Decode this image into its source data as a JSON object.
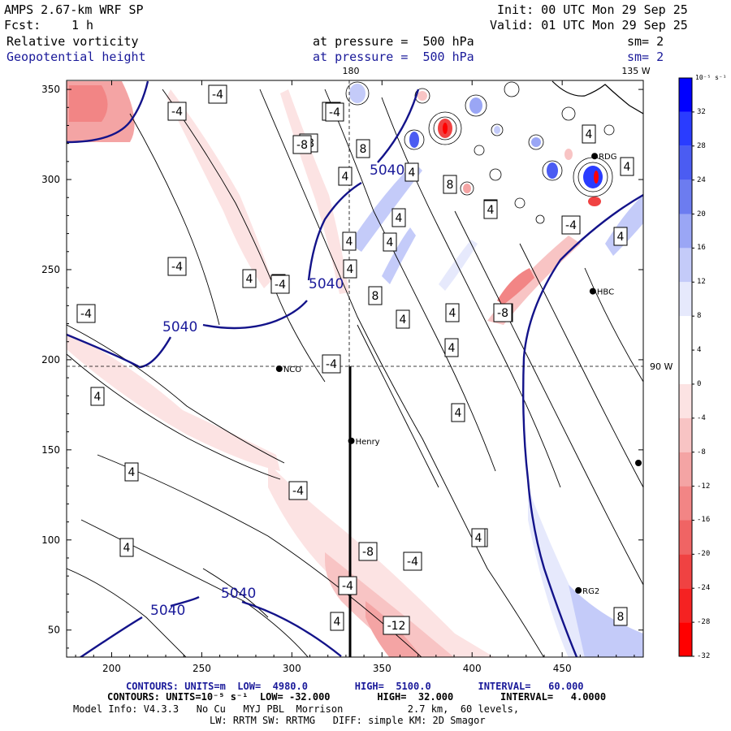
{
  "header": {
    "title": "AMPS 2.67-km WRF SP",
    "fcst_label": "Fcst:",
    "fcst_value": "1 h",
    "init": "Init: 00 UTC Mon 29 Sep 25",
    "valid": "Valid: 01 UTC Mon 29 Sep 25",
    "field1_name": "Relative vorticity",
    "field1_pressure": "at pressure =  500 hPa",
    "field1_sm": "sm= 2",
    "field2_name": "Geopotential height",
    "field2_pressure": "at pressure =  500 hPa",
    "field2_sm": "sm= 2"
  },
  "map": {
    "lon_label_top_left": "180",
    "lon_label_top_right": "135 W",
    "lon_label_right": "90 W",
    "x_ticks": [
      "200",
      "250",
      "300",
      "350",
      "400",
      "450"
    ],
    "y_ticks": [
      "350",
      "300",
      "250",
      "200",
      "150",
      "100",
      "50"
    ],
    "stations": [
      {
        "name": "NCO",
        "x": 293,
        "y": 195
      },
      {
        "name": "Henry",
        "x": 333,
        "y": 155
      },
      {
        "name": "RDG",
        "x": 468,
        "y": 313
      },
      {
        "name": "HBC",
        "x": 467,
        "y": 238
      },
      {
        "name": "RG2",
        "x": 459,
        "y": 72
      }
    ],
    "height_labels": [
      "5040",
      "5040",
      "5040",
      "5040",
      "5040"
    ],
    "vort_labels": [
      "-4",
      "-4",
      "-8",
      "-8",
      "8",
      "4",
      "4",
      "8",
      "4",
      "4",
      "4",
      "4",
      "8",
      "4",
      "-4",
      "4",
      "4",
      "-4",
      "-4",
      "-4",
      "-4",
      "-4",
      "-8",
      "4",
      "-4",
      "4",
      "4",
      "4",
      "4",
      "-8",
      "-4",
      "4",
      "4",
      "4",
      "-4",
      "-12",
      "4",
      "4",
      "8",
      "-8",
      "-8",
      "4",
      "4",
      "4",
      "4"
    ]
  },
  "colorbar": {
    "unit": "10⁻⁵ s⁻¹",
    "levels": [
      "32",
      "28",
      "24",
      "20",
      "16",
      "12",
      "8",
      "4",
      "0",
      "-4",
      "-8",
      "-12",
      "-16",
      "-20",
      "-24",
      "-28",
      "-32"
    ],
    "colors": [
      "#0000ff",
      "#2a3cff",
      "#4b5cf2",
      "#6c7cf0",
      "#9aa6f5",
      "#c4cbf9",
      "#e6e9fc",
      "#ffffff",
      "#ffffff",
      "#fce3e3",
      "#f8c4c4",
      "#f4a4a4",
      "#f28585",
      "#f06464",
      "#f04242",
      "#f52222",
      "#ff0000"
    ]
  },
  "footer": {
    "line1": "CONTOURS: UNITS=m  LOW=  4980.0        HIGH=  5100.0        INTERVAL=   60.000",
    "line2": "CONTOURS: UNITS=10⁻⁵ s⁻¹  LOW= -32.000        HIGH=  32.000        INTERVAL=   4.0000",
    "line3": "Model Info: V4.3.3   No Cu   MYJ PBL  Morrison           2.7 km,  60 levels,",
    "line4": "LW: RRTM SW: RRTMG   DIFF: simple KM: 2D Smagor"
  }
}
